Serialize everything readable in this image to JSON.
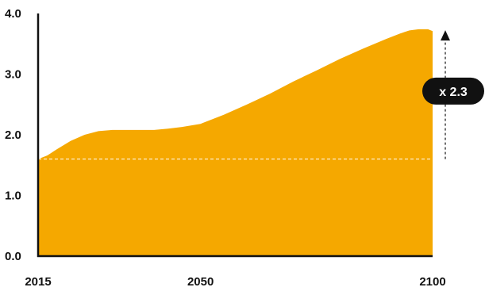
{
  "chart_data": {
    "type": "area",
    "title": "",
    "xlabel": "",
    "ylabel": "",
    "xlim": [
      2015,
      2100
    ],
    "ylim": [
      0,
      4.0
    ],
    "x_ticks": [
      "2015",
      "2050",
      "2100"
    ],
    "y_ticks": [
      "0.0",
      "1.0",
      "2.0",
      "3.0",
      "4.0"
    ],
    "grid": false,
    "series": [
      {
        "x": [
          2015,
          2017,
          2019,
          2022,
          2025,
          2028,
          2031,
          2035,
          2040,
          2043,
          2046,
          2050,
          2055,
          2060,
          2065,
          2070,
          2075,
          2080,
          2085,
          2090,
          2093,
          2095,
          2097,
          2099,
          2100
        ],
        "values": [
          1.6,
          1.66,
          1.76,
          1.9,
          2.0,
          2.06,
          2.08,
          2.08,
          2.08,
          2.1,
          2.13,
          2.18,
          2.33,
          2.5,
          2.68,
          2.88,
          3.06,
          3.25,
          3.42,
          3.58,
          3.67,
          3.72,
          3.74,
          3.74,
          3.71
        ],
        "color": "#F5A800"
      }
    ],
    "reference_line": {
      "value": 1.6,
      "style": "dashed",
      "color": "#ffffff"
    },
    "annotation": {
      "text": "x 2.3",
      "from": 1.6,
      "to": 3.71
    },
    "colors": {
      "area": "#F5A800",
      "axis": "#111111",
      "badge": "#111111",
      "badge_text": "#ffffff"
    }
  }
}
